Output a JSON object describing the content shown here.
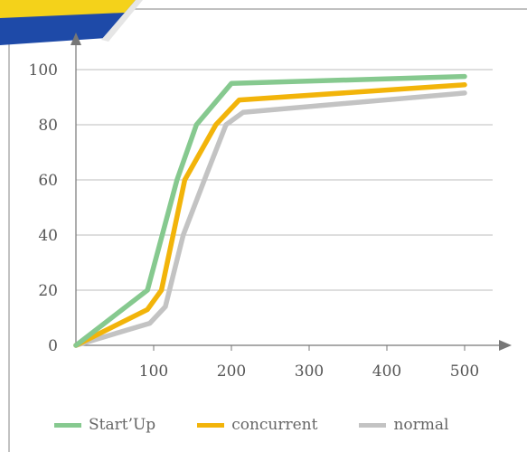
{
  "chart_data": {
    "type": "line",
    "title": "",
    "xlabel": "",
    "ylabel": "",
    "x_tick_labels": [
      "100",
      "200",
      "300",
      "400",
      "500"
    ],
    "y_ticks": [
      0,
      20,
      40,
      60,
      80,
      100
    ],
    "ylim": [
      0,
      108
    ],
    "grid": "horizontal",
    "legend_position": "bottom",
    "series": [
      {
        "name": "Start’Up",
        "color": "#86c98f",
        "points": [
          [
            0,
            0
          ],
          [
            92,
            20
          ],
          [
            130,
            60
          ],
          [
            155,
            80
          ],
          [
            200,
            95
          ],
          [
            500,
            97.5
          ]
        ]
      },
      {
        "name": "concurrent",
        "color": "#f2b40a",
        "points": [
          [
            0,
            0
          ],
          [
            92,
            13
          ],
          [
            110,
            20
          ],
          [
            140,
            60
          ],
          [
            180,
            80
          ],
          [
            210,
            89
          ],
          [
            500,
            94.5
          ]
        ]
      },
      {
        "name": "normal",
        "color": "#c3c3c3",
        "points": [
          [
            0,
            0
          ],
          [
            95,
            8
          ],
          [
            115,
            14
          ],
          [
            138,
            40
          ],
          [
            168,
            62
          ],
          [
            193,
            80
          ],
          [
            215,
            84.5
          ],
          [
            500,
            91.5
          ]
        ]
      }
    ]
  }
}
